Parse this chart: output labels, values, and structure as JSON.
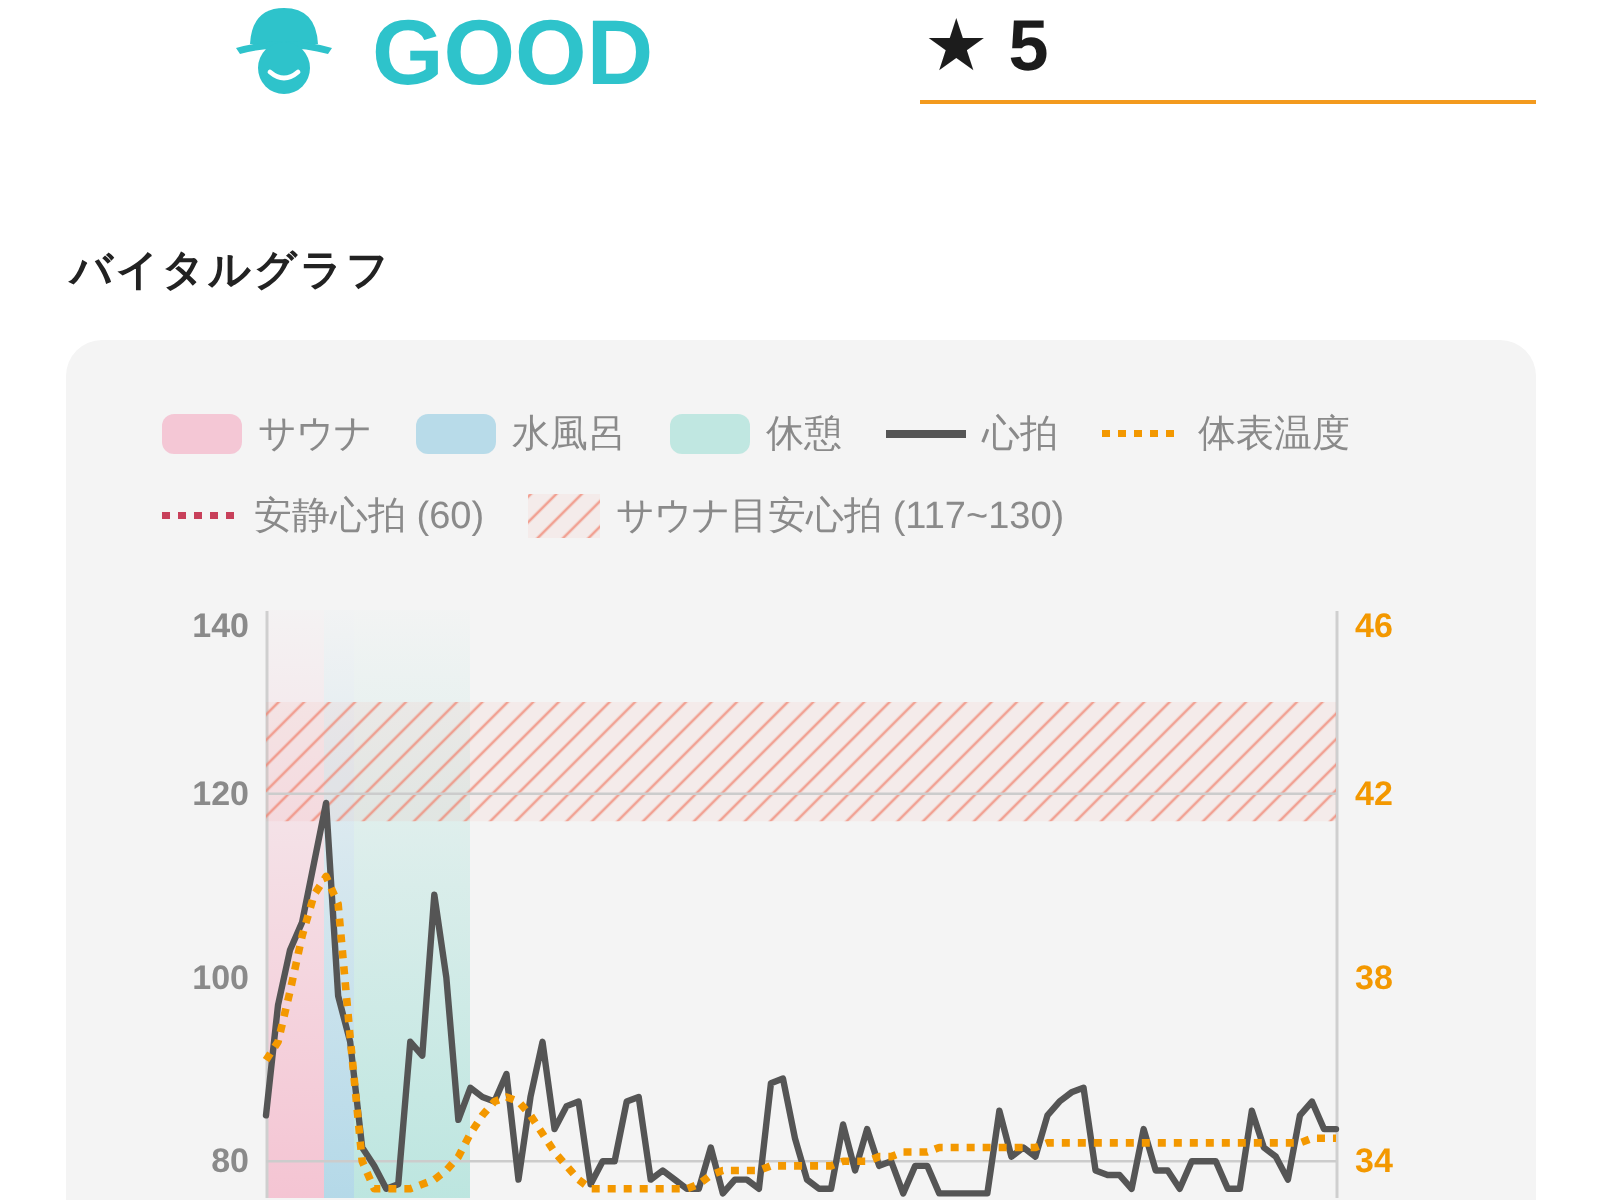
{
  "chart_data": {
    "type": "line",
    "title": "バイタルグラフ",
    "annotations": [
      "GOOD",
      "★ 5",
      "サウナ",
      "水風呂",
      "休憩",
      "安静心拍 (60)"
    ],
    "categories": [
      null,
      null,
      null,
      null,
      null,
      null,
      null,
      null,
      null,
      null,
      null,
      null,
      null,
      null,
      null,
      null,
      null,
      null,
      null,
      null,
      null,
      null,
      null,
      null,
      null,
      null,
      null,
      null,
      null,
      null,
      null,
      null,
      null,
      null,
      null,
      null,
      null,
      null,
      null,
      null,
      null,
      null,
      null,
      null,
      null,
      null,
      null,
      null,
      null,
      null,
      null,
      null,
      null,
      null,
      null,
      null,
      null,
      null,
      null,
      null,
      null,
      null,
      null,
      null,
      null,
      null,
      null,
      null,
      null,
      null,
      null,
      null,
      null,
      null,
      null,
      null,
      null,
      null,
      null,
      null,
      null,
      null,
      null,
      null,
      null,
      null,
      null,
      null,
      null,
      null
    ],
    "series": [
      {
        "name": "心拍",
        "color": "#555555",
        "line_style": "solid",
        "values": [
          85,
          97,
          103,
          106,
          112.5,
          119,
          98,
          93,
          81.5,
          79.5,
          77,
          77.5,
          93,
          91.5,
          109,
          100,
          84.5,
          88,
          87,
          86.5,
          89.5,
          78,
          87,
          93,
          83.5,
          86,
          86.5,
          77.5,
          80,
          80,
          86.5,
          87,
          78,
          79,
          78,
          77,
          77,
          81.5,
          76.5,
          78,
          78,
          77,
          88.5,
          89,
          82.5,
          78,
          77,
          77,
          84,
          79,
          83.5,
          79.5,
          80,
          76.5,
          79.5,
          79.5,
          76.5,
          76.5,
          76.5,
          76.5,
          76.5,
          85.5,
          80.5,
          81.5,
          80.5,
          85,
          86.5,
          87.5,
          88,
          79,
          78.5,
          78.5,
          77,
          83.5,
          79,
          79,
          77,
          80,
          80,
          80,
          77,
          77,
          85.5,
          81.5,
          80.5,
          78,
          85,
          86.5,
          83.5,
          83.5
        ]
      },
      {
        "name": "体表温度",
        "color": "#f39800",
        "line_style": "dotted",
        "axis": "y2",
        "values": [
          36.2,
          36.6,
          37.7,
          38.9,
          39.8,
          40.2,
          39.6,
          36.7,
          34.0,
          33.4,
          33.4,
          33.4,
          33.4,
          33.5,
          33.6,
          33.8,
          34.1,
          34.6,
          35.0,
          35.3,
          35.4,
          35.3,
          35.0,
          34.6,
          34.2,
          33.9,
          33.6,
          33.4,
          33.4,
          33.4,
          33.4,
          33.4,
          33.4,
          33.4,
          33.4,
          33.4,
          33.5,
          33.7,
          33.8,
          33.8,
          33.8,
          33.8,
          33.9,
          33.9,
          33.9,
          33.9,
          33.9,
          33.9,
          34.0,
          34.0,
          34.0,
          34.1,
          34.1,
          34.2,
          34.2,
          34.2,
          34.3,
          34.3,
          34.3,
          34.3,
          34.3,
          34.3,
          34.3,
          34.3,
          34.3,
          34.4,
          34.4,
          34.4,
          34.4,
          34.4,
          34.4,
          34.4,
          34.4,
          34.4,
          34.4,
          34.4,
          34.4,
          34.4,
          34.4,
          34.4,
          34.4,
          34.4,
          34.4,
          34.4,
          34.4,
          34.4,
          34.4,
          34.5,
          34.5,
          34.5
        ]
      }
    ],
    "ylim": [
      76,
      140
    ],
    "yticks": [
      80,
      100,
      120,
      140
    ],
    "y2lim": [
      33.2,
      46
    ],
    "y2ticks": [
      34,
      38,
      42,
      46
    ],
    "bands": [
      {
        "axis": "y",
        "from": 117,
        "to": 130,
        "label": "サウナ目安心拍 (117~130)",
        "color": "#f0826e"
      }
    ],
    "ref_lines": [
      {
        "axis": "y",
        "value": 80,
        "color": "#cccccc"
      },
      {
        "axis": "y",
        "value": 120,
        "color": "#cccccc"
      }
    ],
    "legend": "top"
  }
}
